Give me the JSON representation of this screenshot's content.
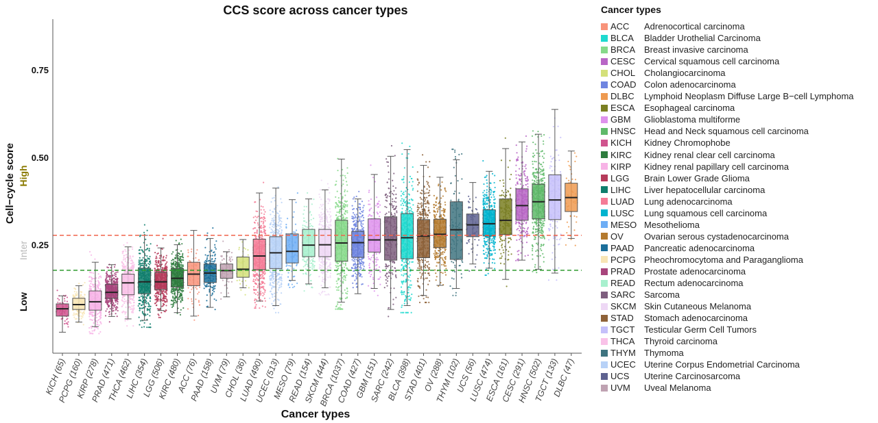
{
  "chart_data": {
    "type": "box",
    "title": "CCS score across cancer types",
    "xlabel": "Cancer types",
    "ylabel": "Cell−cycle score",
    "ylim": [
      -0.06,
      0.895
    ],
    "yticks": [
      0.25,
      0.5,
      0.75
    ],
    "ytick_labels": [
      "0.25",
      "0.50",
      "0.75"
    ],
    "group_labels": [
      {
        "text": "High",
        "color": "#8a7a00"
      },
      {
        "text": "Inter",
        "color": "#b8b8b8"
      },
      {
        "text": "Low",
        "color": "#111111"
      }
    ],
    "reference_lines": [
      {
        "value": 0.277,
        "color": "#f0634a",
        "style": "dashed"
      },
      {
        "value": 0.177,
        "color": "#2e9a2e",
        "style": "dashed"
      }
    ],
    "grid": false,
    "legend_title": "Cancer types",
    "legend_position": "right",
    "boxes": [
      {
        "code": "KICH",
        "n": 65,
        "tick": "KICH (65)",
        "color": "#d0548e",
        "whisker_low": 0.0,
        "q1": 0.046,
        "median": 0.067,
        "q3": 0.081,
        "whisker_high": 0.104
      },
      {
        "code": "PCPG",
        "n": 160,
        "tick": "PCPG (160)",
        "color": "#f8e5b5",
        "whisker_low": 0.029,
        "q1": 0.065,
        "median": 0.079,
        "q3": 0.097,
        "whisker_high": 0.133
      },
      {
        "code": "KIRP",
        "n": 278,
        "tick": "KIRP (278)",
        "color": "#f7b3e6",
        "whisker_low": 0.016,
        "q1": 0.063,
        "median": 0.087,
        "q3": 0.118,
        "whisker_high": 0.2
      },
      {
        "code": "PRAD",
        "n": 471,
        "tick": "PRAD (471)",
        "color": "#a8457c",
        "whisker_low": 0.045,
        "q1": 0.097,
        "median": 0.114,
        "q3": 0.137,
        "whisker_high": 0.193
      },
      {
        "code": "THCA",
        "n": 462,
        "tick": "THCA (462)",
        "color": "#f9c2e8",
        "whisker_low": 0.038,
        "q1": 0.107,
        "median": 0.141,
        "q3": 0.166,
        "whisker_high": 0.244
      },
      {
        "code": "LIHC",
        "n": 354,
        "tick": "LIHC (354)",
        "color": "#0e7e6c",
        "whisker_low": 0.034,
        "q1": 0.11,
        "median": 0.144,
        "q3": 0.183,
        "whisker_high": 0.277
      },
      {
        "code": "LGG",
        "n": 506,
        "tick": "LGG (506)",
        "color": "#b63b5a",
        "whisker_low": 0.062,
        "q1": 0.122,
        "median": 0.144,
        "q3": 0.171,
        "whisker_high": 0.241
      },
      {
        "code": "KIRC",
        "n": 480,
        "tick": "KIRC (480)",
        "color": "#2e7d3e",
        "whisker_low": 0.056,
        "q1": 0.129,
        "median": 0.154,
        "q3": 0.182,
        "whisker_high": 0.25
      },
      {
        "code": "ACC",
        "n": 76,
        "tick": "ACC (76)",
        "color": "#f8937a",
        "whisker_low": 0.046,
        "q1": 0.133,
        "median": 0.166,
        "q3": 0.2,
        "whisker_high": 0.291
      },
      {
        "code": "PAAD",
        "n": 158,
        "tick": "PAAD (158)",
        "color": "#1b6e9a",
        "whisker_low": 0.071,
        "q1": 0.142,
        "median": 0.169,
        "q3": 0.195,
        "whisker_high": 0.268
      },
      {
        "code": "UVM",
        "n": 79,
        "tick": "UVM (79)",
        "color": "#bfa2b2",
        "whisker_low": 0.101,
        "q1": 0.154,
        "median": 0.176,
        "q3": 0.195,
        "whisker_high": 0.23
      },
      {
        "code": "CHOL",
        "n": 36,
        "tick": "CHOL (36)",
        "color": "#d4e07a",
        "whisker_low": 0.127,
        "q1": 0.157,
        "median": 0.18,
        "q3": 0.215,
        "whisker_high": 0.265
      },
      {
        "code": "LUAD",
        "n": 490,
        "tick": "LUAD (490)",
        "color": "#f47c96",
        "whisker_low": 0.089,
        "q1": 0.179,
        "median": 0.218,
        "q3": 0.266,
        "whisker_high": 0.398
      },
      {
        "code": "UCEC",
        "n": 513,
        "tick": "UCEC (513)",
        "color": "#b8d2f7",
        "whisker_low": 0.076,
        "q1": 0.182,
        "median": 0.227,
        "q3": 0.273,
        "whisker_high": 0.412
      },
      {
        "code": "MESO",
        "n": 79,
        "tick": "MESO (79)",
        "color": "#6eaef5",
        "whisker_low": 0.148,
        "q1": 0.198,
        "median": 0.231,
        "q3": 0.281,
        "whisker_high": 0.379
      },
      {
        "code": "READ",
        "n": 154,
        "tick": "READ (154)",
        "color": "#a8f0ce",
        "whisker_low": 0.138,
        "q1": 0.216,
        "median": 0.249,
        "q3": 0.294,
        "whisker_high": 0.381
      },
      {
        "code": "SKCM",
        "n": 444,
        "tick": "SKCM (444)",
        "color": "#eed8f5",
        "whisker_low": 0.127,
        "q1": 0.216,
        "median": 0.25,
        "q3": 0.294,
        "whisker_high": 0.407
      },
      {
        "code": "BRCA",
        "n": 1037,
        "tick": "BRCA (1037)",
        "color": "#86d98a",
        "whisker_low": 0.086,
        "q1": 0.203,
        "median": 0.255,
        "q3": 0.32,
        "whisker_high": 0.495
      },
      {
        "code": "COAD",
        "n": 427,
        "tick": "COAD (427)",
        "color": "#6f85e0",
        "whisker_low": 0.11,
        "q1": 0.214,
        "median": 0.256,
        "q3": 0.288,
        "whisker_high": 0.381
      },
      {
        "code": "GBM",
        "n": 151,
        "tick": "GBM (151)",
        "color": "#de92ec",
        "whisker_low": 0.125,
        "q1": 0.229,
        "median": 0.264,
        "q3": 0.324,
        "whisker_high": 0.451
      },
      {
        "code": "SARC",
        "n": 242,
        "tick": "SARC (242)",
        "color": "#7e5e7e",
        "whisker_low": 0.065,
        "q1": 0.206,
        "median": 0.264,
        "q3": 0.33,
        "whisker_high": 0.503
      },
      {
        "code": "BLCA",
        "n": 398,
        "tick": "BLCA (398)",
        "color": "#1fd9cf",
        "whisker_low": 0.076,
        "q1": 0.21,
        "median": 0.27,
        "q3": 0.339,
        "whisker_high": 0.522
      },
      {
        "code": "STAD",
        "n": 401,
        "tick": "STAD (401)",
        "color": "#8e6238",
        "whisker_low": 0.105,
        "q1": 0.213,
        "median": 0.275,
        "q3": 0.322,
        "whisker_high": 0.477
      },
      {
        "code": "OV",
        "n": 288,
        "tick": "OV (288)",
        "color": "#b47a2e",
        "whisker_low": 0.134,
        "q1": 0.242,
        "median": 0.28,
        "q3": 0.323,
        "whisker_high": 0.443
      },
      {
        "code": "THYM",
        "n": 102,
        "tick": "THYM (102)",
        "color": "#3f7480",
        "whisker_low": 0.125,
        "q1": 0.208,
        "median": 0.293,
        "q3": 0.373,
        "whisker_high": 0.493
      },
      {
        "code": "UCS",
        "n": 56,
        "tick": "UCS (56)",
        "color": "#5e6290",
        "whisker_low": 0.195,
        "q1": 0.273,
        "median": 0.307,
        "q3": 0.338,
        "whisker_high": 0.428
      },
      {
        "code": "LUSC",
        "n": 474,
        "tick": "LUSC (474)",
        "color": "#00b4cf",
        "whisker_low": 0.183,
        "q1": 0.275,
        "median": 0.31,
        "q3": 0.35,
        "whisker_high": 0.46
      },
      {
        "code": "ESCA",
        "n": 161,
        "tick": "ESCA (161)",
        "color": "#7a7f22",
        "whisker_low": 0.151,
        "q1": 0.279,
        "median": 0.32,
        "q3": 0.381,
        "whisker_high": 0.525
      },
      {
        "code": "CESC",
        "n": 291,
        "tick": "CESC (291)",
        "color": "#b866c6",
        "whisker_low": 0.206,
        "q1": 0.32,
        "median": 0.362,
        "q3": 0.41,
        "whisker_high": 0.544
      },
      {
        "code": "HNSC",
        "n": 502,
        "tick": "HNSC (502)",
        "color": "#5fba6a",
        "whisker_low": 0.18,
        "q1": 0.324,
        "median": 0.373,
        "q3": 0.423,
        "whisker_high": 0.566
      },
      {
        "code": "TGCT",
        "n": 133,
        "tick": "TGCT (133)",
        "color": "#c5c0fa",
        "whisker_low": 0.169,
        "q1": 0.322,
        "median": 0.378,
        "q3": 0.45,
        "whisker_high": 0.637
      },
      {
        "code": "DLBC",
        "n": 47,
        "tick": "DLBC (47)",
        "color": "#ee9a50",
        "whisker_low": 0.268,
        "q1": 0.345,
        "median": 0.385,
        "q3": 0.426,
        "whisker_high": 0.518
      }
    ],
    "legend": [
      {
        "code": "ACC",
        "name": "Adrenocortical carcinoma",
        "color": "#f8937a"
      },
      {
        "code": "BLCA",
        "name": "Bladder Urothelial Carcinoma",
        "color": "#1fd9cf"
      },
      {
        "code": "BRCA",
        "name": "Breast invasive carcinoma",
        "color": "#86d98a"
      },
      {
        "code": "CESC",
        "name": "Cervical squamous cell carcinoma",
        "color": "#b866c6"
      },
      {
        "code": "CHOL",
        "name": "Cholangiocarcinoma",
        "color": "#d4e07a"
      },
      {
        "code": "COAD",
        "name": "Colon adenocarcinoma",
        "color": "#6f85e0"
      },
      {
        "code": "DLBC",
        "name": "Lymphoid Neoplasm Diffuse Large B−cell Lymphoma",
        "color": "#ee9a50"
      },
      {
        "code": "ESCA",
        "name": "Esophageal carcinoma",
        "color": "#7a7f22"
      },
      {
        "code": "GBM",
        "name": "Glioblastoma multiforme",
        "color": "#de92ec"
      },
      {
        "code": "HNSC",
        "name": "Head and Neck squamous cell carcinoma",
        "color": "#5fba6a"
      },
      {
        "code": "KICH",
        "name": "Kidney Chromophobe",
        "color": "#d0548e"
      },
      {
        "code": "KIRC",
        "name": "Kidney renal clear cell carcinoma",
        "color": "#2e7d3e"
      },
      {
        "code": "KIRP",
        "name": "Kidney renal papillary cell carcinoma",
        "color": "#f7b3e6"
      },
      {
        "code": "LGG",
        "name": "Brain Lower Grade Glioma",
        "color": "#b63b5a"
      },
      {
        "code": "LIHC",
        "name": "Liver hepatocellular carcinoma",
        "color": "#0e7e6c"
      },
      {
        "code": "LUAD",
        "name": "Lung adenocarcinoma",
        "color": "#f47c96"
      },
      {
        "code": "LUSC",
        "name": "Lung squamous cell carcinoma",
        "color": "#00b4cf"
      },
      {
        "code": "MESO",
        "name": "Mesothelioma",
        "color": "#6eaef5"
      },
      {
        "code": "OV",
        "name": "Ovarian serous cystadenocarcinoma",
        "color": "#b47a2e"
      },
      {
        "code": "PAAD",
        "name": "Pancreatic adenocarcinoma",
        "color": "#1b6e9a"
      },
      {
        "code": "PCPG",
        "name": "Pheochromocytoma and Paraganglioma",
        "color": "#f8e5b5"
      },
      {
        "code": "PRAD",
        "name": "Prostate adenocarcinoma",
        "color": "#a8457c"
      },
      {
        "code": "READ",
        "name": "Rectum adenocarcinoma",
        "color": "#a8f0ce"
      },
      {
        "code": "SARC",
        "name": "Sarcoma",
        "color": "#7e5e7e"
      },
      {
        "code": "SKCM",
        "name": "Skin Cutaneous Melanoma",
        "color": "#eed8f5"
      },
      {
        "code": "STAD",
        "name": "Stomach adenocarcinoma",
        "color": "#8e6238"
      },
      {
        "code": "TGCT",
        "name": "Testicular Germ Cell Tumors",
        "color": "#c5c0fa"
      },
      {
        "code": "THCA",
        "name": "Thyroid carcinoma",
        "color": "#f9c2e8"
      },
      {
        "code": "THYM",
        "name": "Thymoma",
        "color": "#3f7480"
      },
      {
        "code": "UCEC",
        "name": "Uterine Corpus Endometrial Carcinoma",
        "color": "#b8d2f7"
      },
      {
        "code": "UCS",
        "name": "Uterine Carcinosarcoma",
        "color": "#5e6290"
      },
      {
        "code": "UVM",
        "name": "Uveal Melanoma",
        "color": "#bfa2b2"
      }
    ]
  }
}
